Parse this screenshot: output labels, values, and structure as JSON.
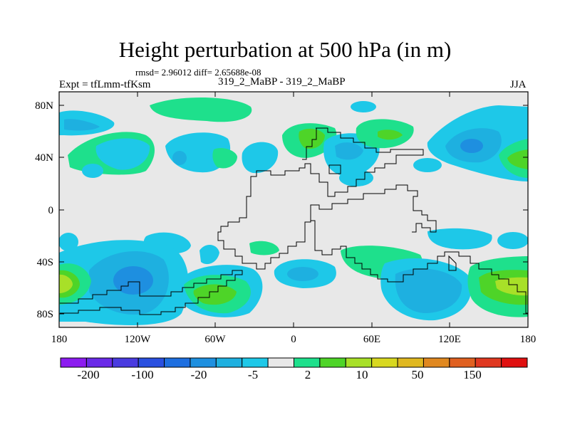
{
  "title": "Height perturbation at 500 hPa (in m)",
  "stats_line": "rmsd= 2.96012 diff= 2.65688e-08",
  "left_label": "Expt = tfLmm-tfKsm",
  "center_label": "319_2_MaBP - 319_2_MaBP",
  "right_label": "JJA",
  "axes": {
    "lat_ticks": [
      "80N",
      "40N",
      "0",
      "40S",
      "80S"
    ],
    "lon_ticks": [
      "180",
      "120W",
      "60W",
      "0",
      "60E",
      "120E",
      "180"
    ]
  },
  "colorbar": {
    "labels": [
      "-200",
      "-100",
      "-20",
      "-5",
      "2",
      "10",
      "50",
      "150"
    ],
    "colors": [
      "#8c1cf0",
      "#6a2ae8",
      "#4a3be0",
      "#2a50e0",
      "#1e6fe0",
      "#1e90e0",
      "#1eb0e0",
      "#1ec8e8",
      "#e8e8e8",
      "#1ee08c",
      "#4ed428",
      "#a8e028",
      "#d8d820",
      "#e0b820",
      "#e08820",
      "#e06020",
      "#e03820",
      "#e01010"
    ]
  }
}
